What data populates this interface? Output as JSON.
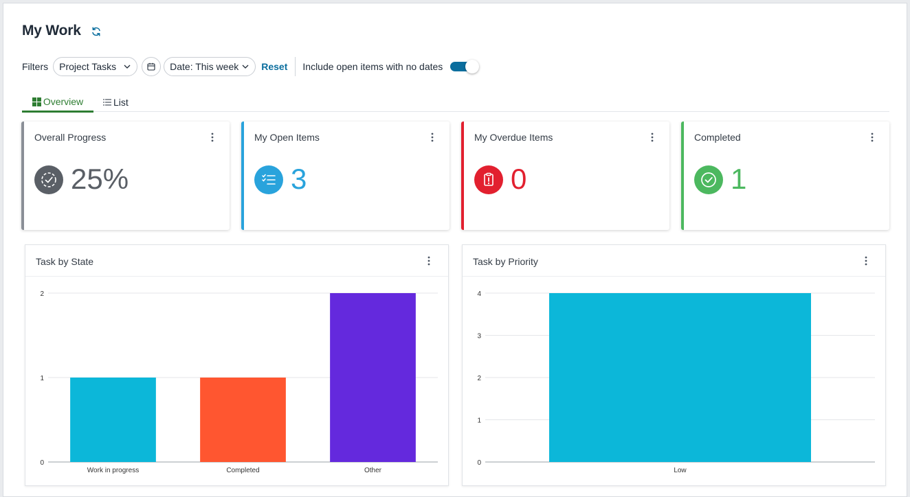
{
  "page": {
    "title": "My Work",
    "refresh_icon": "refresh-icon"
  },
  "filters": {
    "label": "Filters",
    "task_type": "Project Tasks",
    "date": "Date: This week",
    "reset": "Reset",
    "no_dates_label": "Include open items with no dates",
    "no_dates_enabled": true
  },
  "tabs": [
    {
      "label": "Overview",
      "icon": "grid-icon",
      "active": true
    },
    {
      "label": "List",
      "icon": "list-icon",
      "active": false
    }
  ],
  "cards": [
    {
      "title": "Overall Progress",
      "value": "25%",
      "icon": "progress-check-icon",
      "color": "#5a5f66",
      "border": "#8a8f97"
    },
    {
      "title": "My Open Items",
      "value": "3",
      "icon": "checklist-icon",
      "color": "#29a3dc",
      "border": "#29a3dc"
    },
    {
      "title": "My Overdue Items",
      "value": "0",
      "icon": "clipboard-alert-icon",
      "color": "#e2202f",
      "border": "#e2202f"
    },
    {
      "title": "Completed",
      "value": "1",
      "icon": "check-circle-icon",
      "color": "#4cb85f",
      "border": "#4cb85f"
    }
  ],
  "charts": {
    "state_title": "Task by State",
    "priority_title": "Task by Priority"
  },
  "chart_data": [
    {
      "type": "bar",
      "title": "Task by State",
      "categories": [
        "Work in progress",
        "Completed",
        "Other"
      ],
      "values": [
        1,
        1,
        2
      ],
      "colors": [
        "#0cb7d9",
        "#ff5630",
        "#6429dd"
      ],
      "ylim": [
        0,
        2
      ],
      "yticks": [
        0,
        1,
        2
      ],
      "grid": true
    },
    {
      "type": "bar",
      "title": "Task by Priority",
      "categories": [
        "Low"
      ],
      "values": [
        4
      ],
      "colors": [
        "#0cb7d9"
      ],
      "ylim": [
        0,
        4
      ],
      "yticks": [
        0,
        1,
        2,
        3,
        4
      ],
      "grid": true
    }
  ]
}
